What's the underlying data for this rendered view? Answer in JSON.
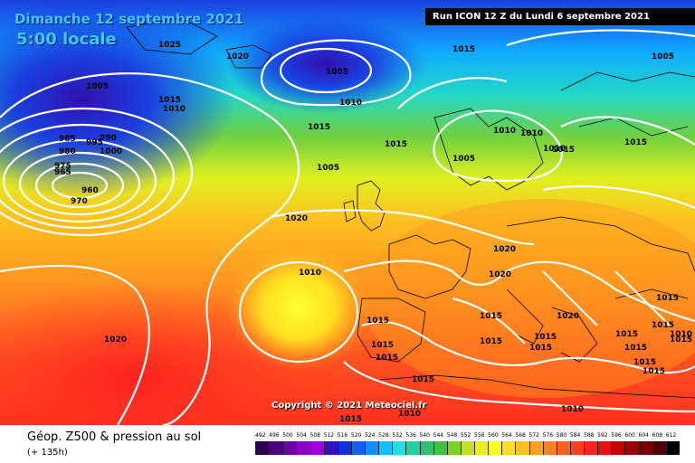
{
  "title": {
    "date": "Dimanche 12 septembre 2021",
    "time": "5:00 locale",
    "run": "Run ICON 12 Z du Lundi 6 septembre 2021"
  },
  "copyright": "Copyright © 2021 Meteociel.fr",
  "footer": {
    "title": "Géop. Z500 & pression au sol",
    "subtitle": "(+ 135h)"
  },
  "legend": {
    "ticks": [
      "492",
      "496",
      "500",
      "504",
      "508",
      "512",
      "516",
      "520",
      "524",
      "528",
      "532",
      "536",
      "540",
      "544",
      "548",
      "552",
      "556",
      "560",
      "564",
      "568",
      "572",
      "576",
      "580",
      "584",
      "588",
      "592",
      "596",
      "600",
      "604",
      "608",
      "612"
    ],
    "colors": [
      "#2b0050",
      "#4a0080",
      "#6a00a8",
      "#8c00c8",
      "#a000e0",
      "#3010c0",
      "#1030e0",
      "#1060ff",
      "#1090ff",
      "#10c0ff",
      "#20e0e0",
      "#20d0a0",
      "#30c070",
      "#40c040",
      "#80d020",
      "#c0e020",
      "#e8f020",
      "#ffff20",
      "#ffe020",
      "#ffc020",
      "#ffa020",
      "#ff8020",
      "#ff6020",
      "#ff4020",
      "#ff2020",
      "#e81010",
      "#c80000",
      "#a00000",
      "#780000",
      "#500000",
      "#000000"
    ]
  },
  "isobars": [
    {
      "label": "1025"
    },
    {
      "label": "1020"
    },
    {
      "label": "1005"
    },
    {
      "label": "1015"
    },
    {
      "label": "1010"
    },
    {
      "label": "1005"
    },
    {
      "label": "1015"
    },
    {
      "label": "1010"
    },
    {
      "label": "1015"
    },
    {
      "label": "1010"
    },
    {
      "label": "1015"
    },
    {
      "label": "1010"
    },
    {
      "label": "1005"
    },
    {
      "label": "1015"
    },
    {
      "label": "1005"
    },
    {
      "label": "1010"
    },
    {
      "label": "1015"
    },
    {
      "label": "1005"
    },
    {
      "label": "1000"
    },
    {
      "label": "995"
    },
    {
      "label": "990"
    },
    {
      "label": "985"
    },
    {
      "label": "980"
    },
    {
      "label": "975"
    },
    {
      "label": "965"
    },
    {
      "label": "960"
    },
    {
      "label": "970"
    },
    {
      "label": "1020"
    },
    {
      "label": "1010"
    },
    {
      "label": "1020"
    },
    {
      "label": "1020"
    },
    {
      "label": "1020"
    },
    {
      "label": "1015"
    },
    {
      "label": "1015"
    },
    {
      "label": "1015"
    },
    {
      "label": "1015"
    },
    {
      "label": "1015"
    },
    {
      "label": "1015"
    },
    {
      "label": "1015"
    },
    {
      "label": "1015"
    },
    {
      "label": "1015"
    },
    {
      "label": "1015"
    },
    {
      "label": "1015"
    },
    {
      "label": "1020"
    },
    {
      "label": "1015"
    },
    {
      "label": "1015"
    },
    {
      "label": "1015"
    },
    {
      "label": "1010"
    },
    {
      "label": "1015"
    },
    {
      "label": "1010"
    },
    {
      "label": "1015"
    },
    {
      "label": "1010"
    }
  ]
}
